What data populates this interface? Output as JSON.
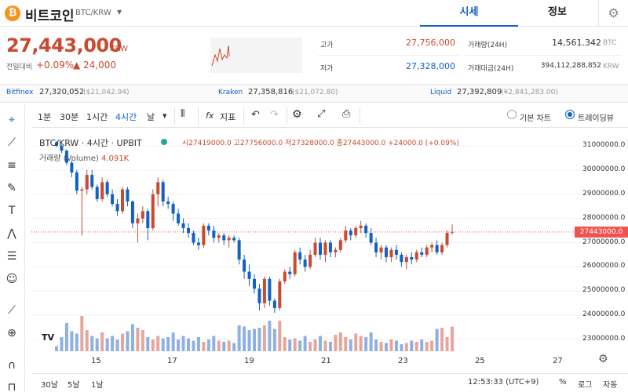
{
  "header": {
    "coin_symbol": "₿",
    "coin_name": "비트코인",
    "pair": "BTC/KRW",
    "tabs": [
      "시세",
      "정보"
    ]
  },
  "price": {
    "current": "27,443,000",
    "unit": "KRW",
    "change_label": "전일대비",
    "change_rate": "+0.09%",
    "change_price": "▲ 24,000"
  },
  "stats": {
    "high_label": "고가",
    "high": "27,756,000",
    "low_label": "저가",
    "low": "27,328,000",
    "volume_label": "거래량(24H)",
    "volume": "14,561.342",
    "volume_unit": "BTC",
    "amount_label": "거래대금(24H)",
    "amount": "394,112,288,852",
    "amount_unit": "KRW"
  },
  "exchanges": [
    {
      "name": "Bitfinex",
      "price": "27,320,052",
      "sub": "($21,042.94)"
    },
    {
      "name": "Kraken",
      "price": "27,358,816",
      "sub": "($21,072.80)"
    },
    {
      "name": "Liquid",
      "price": "27,392,809",
      "sub": "(¥2,841,283.00)"
    }
  ],
  "toolbar": {
    "intervals": [
      "1분",
      "30분",
      "1시간",
      "4시간",
      "날"
    ],
    "indicator_label": "지표",
    "basic_chart": "기본 차트",
    "tradingview": "트레이딩뷰"
  },
  "legend": {
    "symbol": "BTC/KRW · 4시간 · UPBIT",
    "ohlc": "시27419000.0 고27756000.0 저27328000.0 종27443000.0 +24000.0 (+0.09%)",
    "volume_name": "거래량 (Volume)",
    "volume_value": "4.091K"
  },
  "chart_data": {
    "type": "candlestick",
    "y_ticks": [
      "31000000.0",
      "30000000.0",
      "29000000.0",
      "28000000.0",
      "27000000.0",
      "26000000.0",
      "25000000.0",
      "24000000.0",
      "23000000.0"
    ],
    "x_ticks": [
      "15",
      "17",
      "19",
      "21",
      "23",
      "25",
      "27"
    ],
    "current_price_label": "27443000.0",
    "ylim": [
      22700000,
      31400000
    ],
    "up_color": "#c84a31",
    "down_color": "#1261c4",
    "candles": [
      [
        31150000,
        31200000,
        30950000,
        31000000
      ],
      [
        31000000,
        31050000,
        30700000,
        30800000
      ],
      [
        30800000,
        30850000,
        30200000,
        30300000
      ],
      [
        30300000,
        30400000,
        29700000,
        29900000
      ],
      [
        29900000,
        30000000,
        29000000,
        29150000
      ],
      [
        29150000,
        29300000,
        27300000,
        29200000
      ],
      [
        29200000,
        30000000,
        29000000,
        29800000
      ],
      [
        29800000,
        30000000,
        29200000,
        29300000
      ],
      [
        29300000,
        29400000,
        28700000,
        28800000
      ],
      [
        28800000,
        29700000,
        28700000,
        29500000
      ],
      [
        29500000,
        29600000,
        28900000,
        29000000
      ],
      [
        29000000,
        29200000,
        28500000,
        28600000
      ],
      [
        28600000,
        28800000,
        28100000,
        28300000
      ],
      [
        28300000,
        29300000,
        28200000,
        29200000
      ],
      [
        29200000,
        29300000,
        28500000,
        28700000
      ],
      [
        28700000,
        28750000,
        27600000,
        27800000
      ],
      [
        27800000,
        28200000,
        27000000,
        28000000
      ],
      [
        28000000,
        28500000,
        27800000,
        28300000
      ],
      [
        28300000,
        28400000,
        27100000,
        27600000
      ],
      [
        27600000,
        29200000,
        27500000,
        29000000
      ],
      [
        29000000,
        29700000,
        28500000,
        29500000
      ],
      [
        29500000,
        29600000,
        28500000,
        28700000
      ],
      [
        28700000,
        28900000,
        28400000,
        28600000
      ],
      [
        28600000,
        28700000,
        27900000,
        28200000
      ],
      [
        28200000,
        28400000,
        27700000,
        27800000
      ],
      [
        27800000,
        28000000,
        27400000,
        27600000
      ],
      [
        27600000,
        27800000,
        27200000,
        27400000
      ],
      [
        27400000,
        27500000,
        26900000,
        27000000
      ],
      [
        27000000,
        27200000,
        26700000,
        26900000
      ],
      [
        26900000,
        27800000,
        26800000,
        27700000
      ],
      [
        27700000,
        27800000,
        27300000,
        27500000
      ],
      [
        27500000,
        27700000,
        27000000,
        27200000
      ],
      [
        27200000,
        27400000,
        27000000,
        27300000
      ],
      [
        27300000,
        27400000,
        26900000,
        27100000
      ],
      [
        27100000,
        27300000,
        26800000,
        27200000
      ],
      [
        27200000,
        27300000,
        27000000,
        27100000
      ],
      [
        27100000,
        27200000,
        26100000,
        26300000
      ],
      [
        26300000,
        26500000,
        25500000,
        25800000
      ],
      [
        25800000,
        26100000,
        25200000,
        25500000
      ],
      [
        25500000,
        25700000,
        24900000,
        25100000
      ],
      [
        25100000,
        25300000,
        24200000,
        24500000
      ],
      [
        24500000,
        25600000,
        24300000,
        25500000
      ],
      [
        25500000,
        25600000,
        24400000,
        24600000
      ],
      [
        24600000,
        24700000,
        24100000,
        24300000
      ],
      [
        24300000,
        25500000,
        24200000,
        25400000
      ],
      [
        25400000,
        25900000,
        25300000,
        25800000
      ],
      [
        25800000,
        26000000,
        25500000,
        25700000
      ],
      [
        25700000,
        26700000,
        25600000,
        26600000
      ],
      [
        26600000,
        26800000,
        26100000,
        26300000
      ],
      [
        26300000,
        26500000,
        25800000,
        26000000
      ],
      [
        26000000,
        26700000,
        25900000,
        26500000
      ],
      [
        26500000,
        27200000,
        26400000,
        27000000
      ],
      [
        27000000,
        27200000,
        26300000,
        26500000
      ],
      [
        26500000,
        27100000,
        26200000,
        27000000
      ],
      [
        27000000,
        27100000,
        26400000,
        26600000
      ],
      [
        26600000,
        26800000,
        26400000,
        26700000
      ],
      [
        26700000,
        27200000,
        26600000,
        27100000
      ],
      [
        27100000,
        27700000,
        27000000,
        27500000
      ],
      [
        27500000,
        27600000,
        27100000,
        27300000
      ],
      [
        27300000,
        27700000,
        27200000,
        27600000
      ],
      [
        27600000,
        27900000,
        27400000,
        27700000
      ],
      [
        27700000,
        27800000,
        27200000,
        27400000
      ],
      [
        27400000,
        27600000,
        26900000,
        27000000
      ],
      [
        27000000,
        27200000,
        26400000,
        26600000
      ],
      [
        26600000,
        26900000,
        26300000,
        26800000
      ],
      [
        26800000,
        26900000,
        26200000,
        26400000
      ],
      [
        26400000,
        26800000,
        26200000,
        26700000
      ],
      [
        26700000,
        26900000,
        26300000,
        26500000
      ],
      [
        26500000,
        26600000,
        26000000,
        26200000
      ],
      [
        26200000,
        26500000,
        25900000,
        26400000
      ],
      [
        26400000,
        26600000,
        26100000,
        26300000
      ],
      [
        26300000,
        26700000,
        26200000,
        26600000
      ],
      [
        26600000,
        26800000,
        26400000,
        26500000
      ],
      [
        26500000,
        26900000,
        26400000,
        26800000
      ],
      [
        26800000,
        27000000,
        26600000,
        26900000
      ],
      [
        26900000,
        27100000,
        26500000,
        26600000
      ],
      [
        26600000,
        27000000,
        26500000,
        26900000
      ],
      [
        26900000,
        27500000,
        26800000,
        27400000
      ],
      [
        27419000,
        27756000,
        27328000,
        27443000
      ]
    ],
    "volumes": [
      1.4,
      1.2,
      2.4,
      1.7,
      1.5,
      3.0,
      1.8,
      1.3,
      1.1,
      1.6,
      1.1,
      1.3,
      1.0,
      1.5,
      1.7,
      2.3,
      2.0,
      1.8,
      1.2,
      1.0,
      1.3,
      1.1,
      1.2,
      1.6,
      1.0,
      1.3,
      1.1,
      0.9,
      1.2,
      0.8,
      1.0,
      1.3,
      0.9,
      0.8,
      0.9,
      0.7,
      2.2,
      2.1,
      1.8,
      1.9,
      2.0,
      2.2,
      2.6,
      1.9,
      2.6,
      1.2,
      1.0,
      1.1,
      0.9,
      1.3,
      0.8,
      1.0,
      1.3,
      0.9,
      0.8,
      1.4,
      1.6,
      1.2,
      1.0,
      1.5,
      1.3,
      1.2,
      1.6,
      1.0,
      0.8,
      0.7,
      1.0,
      0.9,
      0.6,
      0.7,
      0.9,
      0.8,
      1.0,
      0.8,
      0.9,
      1.9,
      2.0,
      1.2,
      2.1
    ]
  }
}
